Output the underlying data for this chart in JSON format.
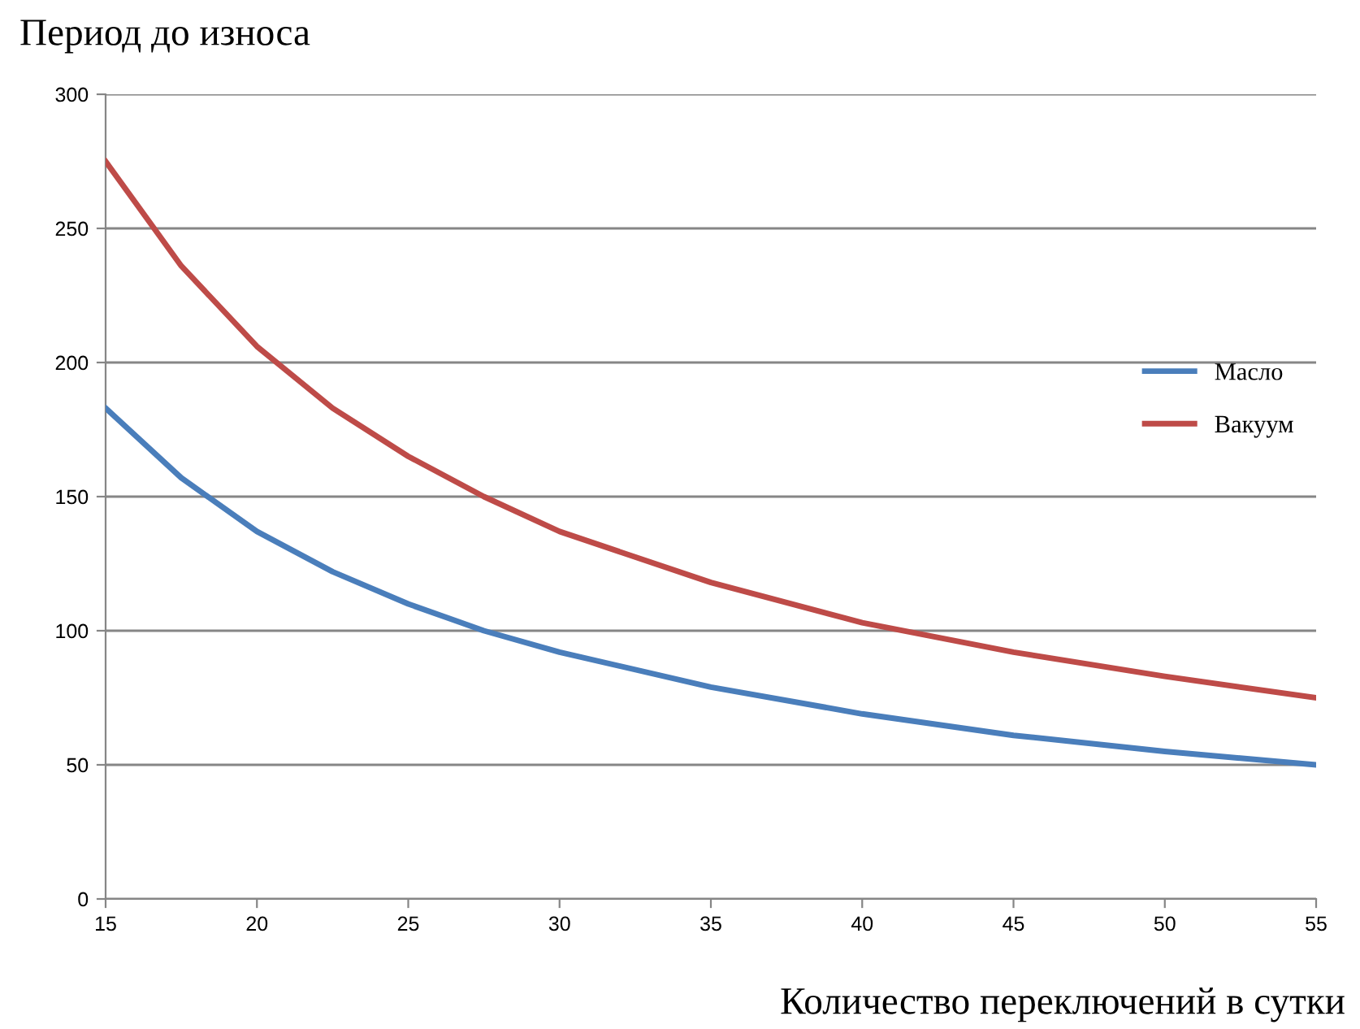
{
  "chart_data": {
    "type": "line",
    "title": "Период до износа",
    "xlabel": "Количество переключений в сутки",
    "x": [
      15,
      17.5,
      20,
      22.5,
      25,
      27.5,
      30,
      35,
      40,
      45,
      50,
      55
    ],
    "series": [
      {
        "name": "Масло",
        "color": "#4a7ebb",
        "values": [
          183,
          157,
          137,
          122,
          110,
          100,
          92,
          79,
          69,
          61,
          55,
          50
        ]
      },
      {
        "name": "Вакуум",
        "color": "#be4b48",
        "values": [
          275,
          236,
          206,
          183,
          165,
          150,
          137,
          118,
          103,
          92,
          83,
          75
        ]
      }
    ],
    "xlim": [
      15,
      55
    ],
    "xticks": [
      15,
      20,
      25,
      30,
      35,
      40,
      45,
      50,
      55
    ],
    "ylim": [
      0,
      300
    ],
    "yticks": [
      0,
      50,
      100,
      150,
      200,
      250,
      300
    ],
    "grid": "y",
    "legend": "right",
    "marker": "none",
    "line_style": "solid"
  }
}
